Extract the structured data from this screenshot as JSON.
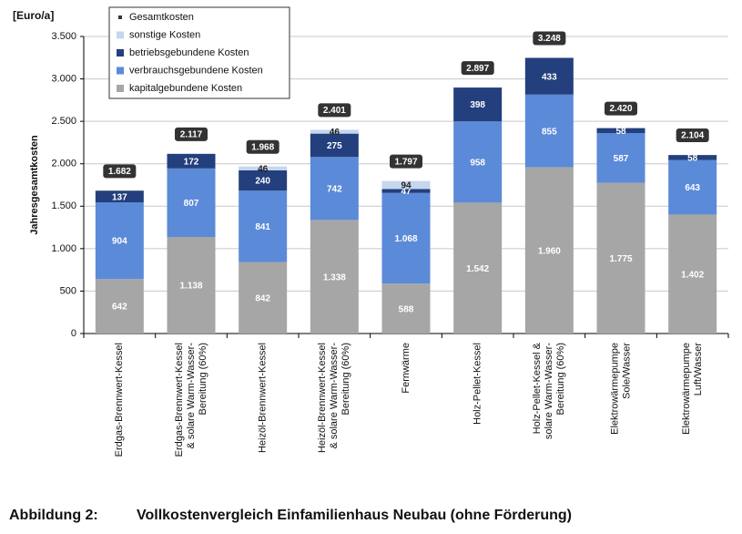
{
  "chart_data": {
    "type": "stacked_bar",
    "unit_label": "[Euro/a]",
    "y_label": "Jahresgesamtkosten",
    "caption_number": "Abbildung 2:",
    "caption": "Vollkostenvergleich Einfamilienhaus Neubau (ohne Förderung)",
    "categories": [
      [
        "Erdgas-Brennwert-Kessel"
      ],
      [
        "Erdgas-Brennwert-Kessel",
        "& solare Warm-Wasser-",
        "Bereitung (60%)"
      ],
      [
        "Heizöl-Brennwert-Kessel"
      ],
      [
        "Heizöl-Brennwert-Kessel",
        "& solare Warm-Wasser-",
        "Bereitung (60%)"
      ],
      [
        "Fernwärme"
      ],
      [
        "Holz-Pellet-Kessel"
      ],
      [
        "Holz-Pellet-Kessel &",
        "solare Warm-Wasser-",
        "Bereitung (60%)"
      ],
      [
        "Elektrowärmepumpe",
        "Sole/Wasser"
      ],
      [
        "Elektrowärmepumpe",
        "Luft/Wasser"
      ]
    ],
    "series": [
      {
        "name": "kapitalgebundene Kosten",
        "color": "#a6a6a6",
        "label_color": "#ffffff",
        "values": [
          642,
          1138,
          842,
          1338,
          588,
          1542,
          1960,
          1775,
          1402
        ],
        "value_labels": [
          "642",
          "1.138",
          "842",
          "1.338",
          "588",
          "1.542",
          "1.960",
          "1.775",
          "1.402"
        ]
      },
      {
        "name": "verbrauchsgebundene Kosten",
        "color": "#5b8ad8",
        "label_color": "#ffffff",
        "values": [
          904,
          807,
          841,
          742,
          1068,
          958,
          855,
          587,
          643
        ],
        "value_labels": [
          "904",
          "807",
          "841",
          "742",
          "1.068",
          "958",
          "855",
          "587",
          "643"
        ]
      },
      {
        "name": "betriebsgebundene Kosten",
        "color": "#233f7d",
        "label_color": "#ffffff",
        "values": [
          137,
          172,
          240,
          275,
          47,
          398,
          433,
          58,
          58
        ]
      },
      {
        "name": "sonstige Kosten",
        "color": "#c6d6ef",
        "label_color": "#222222",
        "values": [
          null,
          null,
          46,
          46,
          94,
          null,
          null,
          null,
          null
        ]
      }
    ],
    "totals": {
      "name": "Gesamtkosten",
      "color": "#333333",
      "values": [
        1682,
        2117,
        1968,
        2401,
        1797,
        2897,
        3248,
        2420,
        2104
      ],
      "value_labels": [
        "1.682",
        "2.117",
        "1.968",
        "2.401",
        "1.797",
        "2.897",
        "3.248",
        "2.420",
        "2.104"
      ]
    },
    "ylim": [
      0,
      3500
    ],
    "yticks": [
      0,
      500,
      {
        "value": 1000,
        "label": "1.000"
      },
      {
        "value": 1500,
        "label": "1.500"
      },
      {
        "value": 2000,
        "label": "2.000"
      },
      {
        "value": 2500,
        "label": "2.500"
      },
      {
        "value": 3000,
        "label": "3.000"
      },
      {
        "value": 3500,
        "label": "3.500"
      }
    ],
    "grid": true
  }
}
